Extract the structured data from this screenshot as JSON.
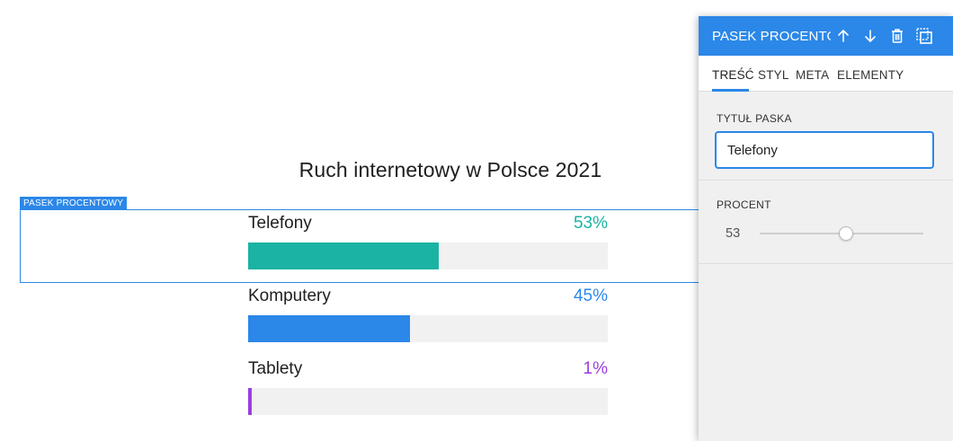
{
  "document": {
    "title": "Ruch internetowy w Polsce 2021",
    "selected_element_tag": "PASEK PROCENTOWY",
    "bars": [
      {
        "label": "Telefony",
        "value_text": "53%",
        "percent": 53,
        "color": "#1bb3a3"
      },
      {
        "label": "Komputery",
        "value_text": "45%",
        "percent": 45,
        "color": "#2b87e8"
      },
      {
        "label": "Tablety",
        "value_text": "1%",
        "percent": 1,
        "color": "#9b3ee0"
      }
    ]
  },
  "panel": {
    "title": "PASEK PROCENTOWY",
    "icons": [
      "arrow-up-icon",
      "arrow-down-icon",
      "trash-icon",
      "select-frame-icon"
    ],
    "tabs": [
      "TREŚĆ",
      "STYL",
      "META",
      "ELEMENTY"
    ],
    "active_tab": "TREŚĆ",
    "fields": {
      "title_label": "TYTUŁ PASKA",
      "title_value": "Telefony",
      "percent_label": "PROCENT",
      "percent_value": "53",
      "percent_min": 0,
      "percent_max": 100
    },
    "accent_color": "#2b87e8"
  }
}
